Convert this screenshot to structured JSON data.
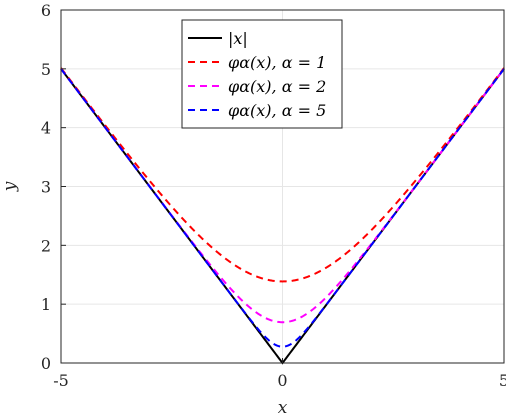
{
  "chart_data": {
    "type": "line",
    "xlabel": "x",
    "ylabel": "y",
    "xlim": [
      -5,
      5
    ],
    "ylim": [
      0,
      6
    ],
    "xticks": [
      -5,
      0,
      5
    ],
    "yticks": [
      0,
      1,
      2,
      3,
      4,
      5,
      6
    ],
    "grid": true,
    "legend_position": "top-center",
    "series": [
      {
        "name": "|x|",
        "function": "abs",
        "alpha": 0,
        "color": "#000000",
        "dash": "solid"
      },
      {
        "name": "φα(x), α = 1",
        "function": "smooth_abs",
        "alpha": 1,
        "color": "#ff0000",
        "dash": "dashed"
      },
      {
        "name": "φα(x), α = 2",
        "function": "smooth_abs",
        "alpha": 2,
        "color": "#ff00ff",
        "dash": "dashed"
      },
      {
        "name": "φα(x), α = 5",
        "function": "smooth_abs",
        "alpha": 5,
        "color": "#0000ff",
        "dash": "dashed"
      }
    ],
    "sample_values": {
      "x": [
        -5,
        -2.5,
        0,
        2.5,
        5
      ],
      "abs": [
        5,
        2.5,
        0,
        2.5,
        5
      ],
      "alpha_1": [
        5.0,
        2.66,
        1.39,
        2.66,
        5.0
      ],
      "alpha_2": [
        5.0,
        2.52,
        0.69,
        2.52,
        5.0
      ],
      "alpha_5": [
        5.0,
        2.5,
        0.28,
        2.5,
        5.0
      ]
    }
  }
}
